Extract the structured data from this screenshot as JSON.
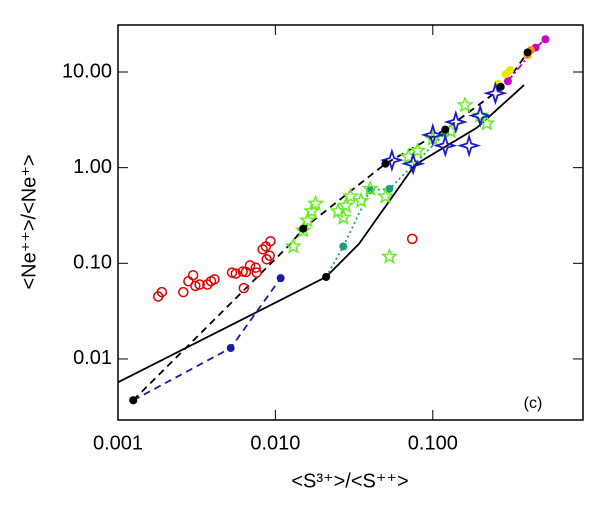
{
  "chart_data": {
    "type": "scatter",
    "xlabel": "<S³⁺>/<S⁺⁺>",
    "ylabel": "<Ne⁺⁺>/<Ne⁺>",
    "annotation": "(c)",
    "xscale": "log",
    "yscale": "log",
    "xlim": [
      0.001,
      0.9
    ],
    "ylim": [
      0.0023,
      31
    ],
    "xticks": [
      0.001,
      {
        "value": 0.01,
        "label": "0.010"
      },
      {
        "value": 0.1,
        "label": "0.100"
      }
    ],
    "yticks": [
      0.01,
      {
        "value": 0.1,
        "label": "0.10"
      },
      {
        "value": 1,
        "label": "1.00"
      },
      {
        "value": 10,
        "label": "10.00"
      }
    ],
    "series": [
      {
        "color": "#000000",
        "line": "solid",
        "marker": "none",
        "x": [
          0.001,
          0.021,
          0.034,
          0.077,
          0.19,
          0.38
        ],
        "y": [
          0.0057,
          0.072,
          0.16,
          1.07,
          2.6,
          7.3
        ]
      },
      {
        "color": "#000000",
        "line": "dashed",
        "marker": "none",
        "x": [
          0.00125,
          0.0125,
          0.015,
          0.05,
          0.12,
          0.28,
          0.4
        ],
        "y": [
          0.0037,
          0.16,
          0.23,
          1.1,
          2.5,
          7,
          16
        ]
      },
      {
        "color": "#1a1aa6",
        "line": "dashed",
        "marker": "circle-filled",
        "x": [
          0.00125,
          0.0052,
          0.0108
        ],
        "y": [
          0.0037,
          0.013,
          0.07
        ]
      },
      {
        "color": "#1aa07a",
        "line": "dotted",
        "marker": "circle-filled",
        "x": [
          0.021,
          0.027,
          0.04,
          0.053,
          0.12
        ],
        "y": [
          0.072,
          0.15,
          0.58,
          0.6,
          2.3
        ]
      },
      {
        "color": "#cc00cc",
        "line": "dashdot",
        "marker": "circle-filled",
        "x": [
          0.3,
          0.45,
          0.52
        ],
        "y": [
          8,
          18,
          22
        ]
      },
      {
        "color": "#e8e800",
        "line": "none",
        "marker": "circle-filled",
        "x": [
          0.26,
          0.29,
          0.31
        ],
        "y": [
          7.5,
          9.5,
          10.5
        ]
      },
      {
        "color": "#ff8c00",
        "line": "none",
        "marker": "circle-filled",
        "x": [
          0.4,
          0.42
        ],
        "y": [
          15,
          17
        ]
      },
      {
        "color": "#e00000",
        "line": "none",
        "marker": "circle-open",
        "x": [
          0.0018,
          0.0019,
          0.0026,
          0.0028,
          0.003,
          0.0031,
          0.0033,
          0.0037,
          0.0039,
          0.0041,
          0.0053,
          0.0056,
          0.0062,
          0.0065,
          0.0063,
          0.0069,
          0.0075,
          0.0076,
          0.0083,
          0.0087,
          0.0088,
          0.0092,
          0.0093,
          0.074
        ],
        "y": [
          0.045,
          0.05,
          0.05,
          0.065,
          0.075,
          0.058,
          0.06,
          0.06,
          0.065,
          0.068,
          0.08,
          0.078,
          0.082,
          0.081,
          0.055,
          0.095,
          0.09,
          0.08,
          0.14,
          0.15,
          0.11,
          0.12,
          0.17,
          0.18
        ]
      },
      {
        "color": "#66ee22",
        "line": "none",
        "marker": "star5",
        "x": [
          0.013,
          0.015,
          0.016,
          0.017,
          0.018,
          0.025,
          0.027,
          0.028,
          0.03,
          0.035,
          0.04,
          0.053,
          0.05,
          0.07,
          0.08,
          0.1,
          0.13,
          0.16,
          0.2,
          0.22
        ],
        "y": [
          0.15,
          0.22,
          0.28,
          0.35,
          0.42,
          0.35,
          0.3,
          0.4,
          0.5,
          0.45,
          0.6,
          0.117,
          0.5,
          1.3,
          1.5,
          2.0,
          2.4,
          4.5,
          3.5,
          2.9
        ]
      },
      {
        "color": "#1a1acc",
        "line": "none",
        "marker": "star4",
        "x": [
          0.055,
          0.075,
          0.1,
          0.12,
          0.14,
          0.17,
          0.2,
          0.25
        ],
        "y": [
          1.2,
          1.1,
          2.2,
          1.7,
          3,
          1.7,
          3.5,
          6
        ]
      },
      {
        "color": "#000000",
        "line": "none",
        "marker": "circle-filled",
        "x": [
          0.00125,
          0.015,
          0.021,
          0.05,
          0.12,
          0.27,
          0.4
        ],
        "y": [
          0.0037,
          0.23,
          0.072,
          1.1,
          2.5,
          7,
          16
        ]
      }
    ]
  }
}
